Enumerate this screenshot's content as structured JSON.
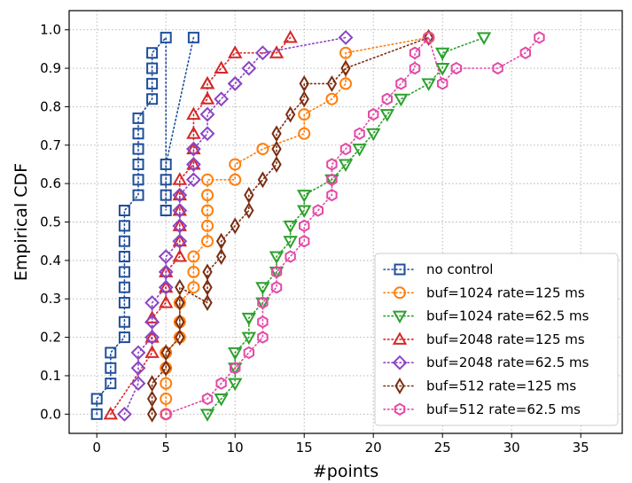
{
  "chart_data": {
    "type": "line",
    "xlabel": "#points",
    "ylabel": "Empirical CDF",
    "xlim": [
      -2,
      38
    ],
    "ylim": [
      -0.05,
      1.05
    ],
    "xticks": [
      0,
      5,
      10,
      15,
      20,
      25,
      30,
      35
    ],
    "yticks": [
      0.0,
      0.1,
      0.2,
      0.3,
      0.4,
      0.5,
      0.6,
      0.7,
      0.8,
      0.9,
      1.0
    ],
    "grid": true,
    "legend_position": "lower-right",
    "series": [
      {
        "name": "no control",
        "color": "#1f4e9c",
        "marker": "square",
        "x": [
          0,
          0,
          1,
          1,
          1,
          2,
          2,
          2,
          2,
          2,
          2,
          2,
          2,
          2,
          3,
          3,
          3,
          3,
          3,
          3,
          4,
          4,
          4,
          4,
          5,
          5,
          5,
          5,
          5,
          7
        ],
        "y": [
          0.0,
          0.04,
          0.08,
          0.12,
          0.16,
          0.2,
          0.24,
          0.29,
          0.33,
          0.37,
          0.41,
          0.45,
          0.49,
          0.53,
          0.57,
          0.61,
          0.65,
          0.69,
          0.73,
          0.77,
          0.82,
          0.86,
          0.9,
          0.94,
          0.98,
          0.53,
          0.57,
          0.61,
          0.65,
          0.98
        ]
      },
      {
        "name": "buf=1024 rate=125 ms",
        "color": "#ff7f0e",
        "marker": "circle",
        "x": [
          5,
          5,
          5,
          5,
          5,
          6,
          6,
          6,
          7,
          7,
          7,
          8,
          8,
          8,
          8,
          8,
          10,
          10,
          12,
          15,
          15,
          17,
          18,
          18,
          24
        ],
        "y": [
          0.0,
          0.04,
          0.08,
          0.12,
          0.16,
          0.2,
          0.24,
          0.29,
          0.33,
          0.37,
          0.41,
          0.45,
          0.49,
          0.53,
          0.57,
          0.61,
          0.61,
          0.65,
          0.69,
          0.73,
          0.78,
          0.82,
          0.86,
          0.94,
          0.98
        ]
      },
      {
        "name": "buf=1024 rate=62.5 ms",
        "color": "#2ca02c",
        "marker": "triangle-down",
        "x": [
          8,
          9,
          10,
          10,
          10,
          11,
          11,
          12,
          12,
          13,
          13,
          14,
          14,
          15,
          15,
          17,
          18,
          19,
          20,
          21,
          22,
          24,
          25,
          25,
          28
        ],
        "y": [
          0.0,
          0.04,
          0.08,
          0.12,
          0.16,
          0.2,
          0.25,
          0.29,
          0.33,
          0.37,
          0.41,
          0.45,
          0.49,
          0.53,
          0.57,
          0.61,
          0.65,
          0.69,
          0.73,
          0.78,
          0.82,
          0.86,
          0.9,
          0.94,
          0.98
        ]
      },
      {
        "name": "buf=2048 rate=125 ms",
        "color": "#d62728",
        "marker": "triangle-up",
        "x": [
          1,
          4,
          4,
          4,
          5,
          5,
          5,
          6,
          6,
          6,
          6,
          6,
          6,
          7,
          7,
          7,
          7,
          8,
          8,
          8,
          9,
          10,
          13,
          14
        ],
        "y": [
          0.0,
          0.16,
          0.2,
          0.25,
          0.29,
          0.33,
          0.37,
          0.41,
          0.45,
          0.49,
          0.53,
          0.57,
          0.61,
          0.65,
          0.69,
          0.73,
          0.78,
          0.82,
          0.86,
          0.86,
          0.9,
          0.94,
          0.94,
          0.98
        ]
      },
      {
        "name": "buf=2048 rate=62.5 ms",
        "color": "#8c45c4",
        "marker": "diamond",
        "x": [
          2,
          3,
          3,
          3,
          4,
          4,
          4,
          5,
          5,
          5,
          6,
          6,
          6,
          6,
          7,
          7,
          7,
          8,
          8,
          9,
          10,
          10,
          11,
          12,
          18
        ],
        "y": [
          0.0,
          0.08,
          0.12,
          0.16,
          0.2,
          0.24,
          0.29,
          0.33,
          0.37,
          0.41,
          0.45,
          0.49,
          0.53,
          0.57,
          0.61,
          0.65,
          0.69,
          0.73,
          0.78,
          0.82,
          0.86,
          0.86,
          0.9,
          0.94,
          0.98
        ]
      },
      {
        "name": "buf=512 rate=125 ms",
        "color": "#7b2d12",
        "marker": "thin-diamond",
        "x": [
          4,
          4,
          4,
          5,
          5,
          6,
          6,
          6,
          6,
          8,
          8,
          8,
          9,
          9,
          10,
          11,
          11,
          12,
          13,
          13,
          13,
          14,
          15,
          15,
          17,
          18,
          24
        ],
        "y": [
          0.0,
          0.04,
          0.08,
          0.12,
          0.16,
          0.2,
          0.24,
          0.29,
          0.33,
          0.29,
          0.33,
          0.37,
          0.41,
          0.45,
          0.49,
          0.53,
          0.57,
          0.61,
          0.65,
          0.69,
          0.73,
          0.78,
          0.82,
          0.86,
          0.86,
          0.9,
          0.98
        ]
      },
      {
        "name": "buf=512 rate=62.5 ms",
        "color": "#e34aa6",
        "marker": "hexagon",
        "x": [
          5,
          8,
          9,
          10,
          11,
          12,
          12,
          12,
          13,
          13,
          14,
          15,
          15,
          16,
          17,
          17,
          17,
          18,
          19,
          20,
          21,
          22,
          23,
          23,
          24,
          25,
          26,
          29,
          31,
          32
        ],
        "y": [
          0.0,
          0.04,
          0.08,
          0.12,
          0.16,
          0.2,
          0.24,
          0.29,
          0.33,
          0.37,
          0.41,
          0.45,
          0.49,
          0.53,
          0.57,
          0.61,
          0.65,
          0.69,
          0.73,
          0.78,
          0.82,
          0.86,
          0.9,
          0.94,
          0.98,
          0.86,
          0.9,
          0.9,
          0.94,
          0.98
        ]
      }
    ]
  }
}
